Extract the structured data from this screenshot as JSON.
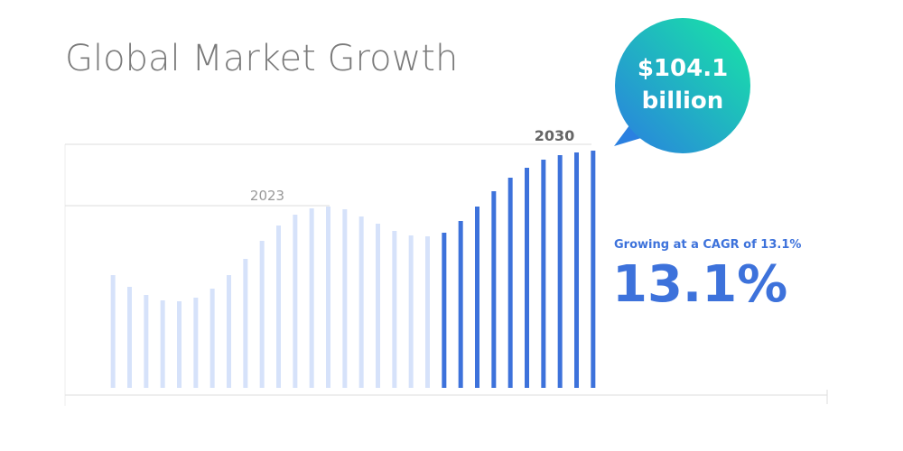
{
  "chart_data": {
    "type": "bar",
    "title": "Global Market Growth",
    "categories": [
      null,
      null,
      null,
      null,
      null,
      null,
      null,
      null,
      null,
      null,
      null,
      null,
      null,
      null,
      null,
      null,
      null,
      null,
      null,
      null,
      null,
      null,
      null,
      null,
      null,
      null,
      null,
      null,
      null,
      null
    ],
    "values": [
      125,
      112,
      103,
      97,
      96,
      100,
      110,
      125,
      143,
      163,
      180,
      192,
      199,
      201,
      198,
      190,
      182,
      174,
      169,
      168,
      172,
      185,
      201,
      218,
      233,
      244,
      253,
      258,
      261,
      263
    ],
    "colors": [
      "#d6e2fa",
      "#d6e2fa",
      "#d6e2fa",
      "#d6e2fa",
      "#d6e2fa",
      "#d6e2fa",
      "#d6e2fa",
      "#d6e2fa",
      "#d6e2fa",
      "#d6e2fa",
      "#d6e2fa",
      "#d6e2fa",
      "#d6e2fa",
      "#d6e2fa",
      "#d6e2fa",
      "#d6e2fa",
      "#d6e2fa",
      "#d6e2fa",
      "#d6e2fa",
      "#d6e2fa",
      "#3d72db",
      "#3d72db",
      "#3d72db",
      "#3d72db",
      "#3d72db",
      "#3d72db",
      "#3d72db",
      "#3d72db",
      "#3d72db",
      "#3d72db"
    ],
    "ylim": [
      0,
      300
    ],
    "annotations": {
      "start_year": "2023",
      "end_year": "2030",
      "callout": [
        "$104.1",
        "billion"
      ],
      "cagr_caption": "Growing at a CAGR of 13.1%",
      "cagr_value": "13.1%"
    }
  }
}
